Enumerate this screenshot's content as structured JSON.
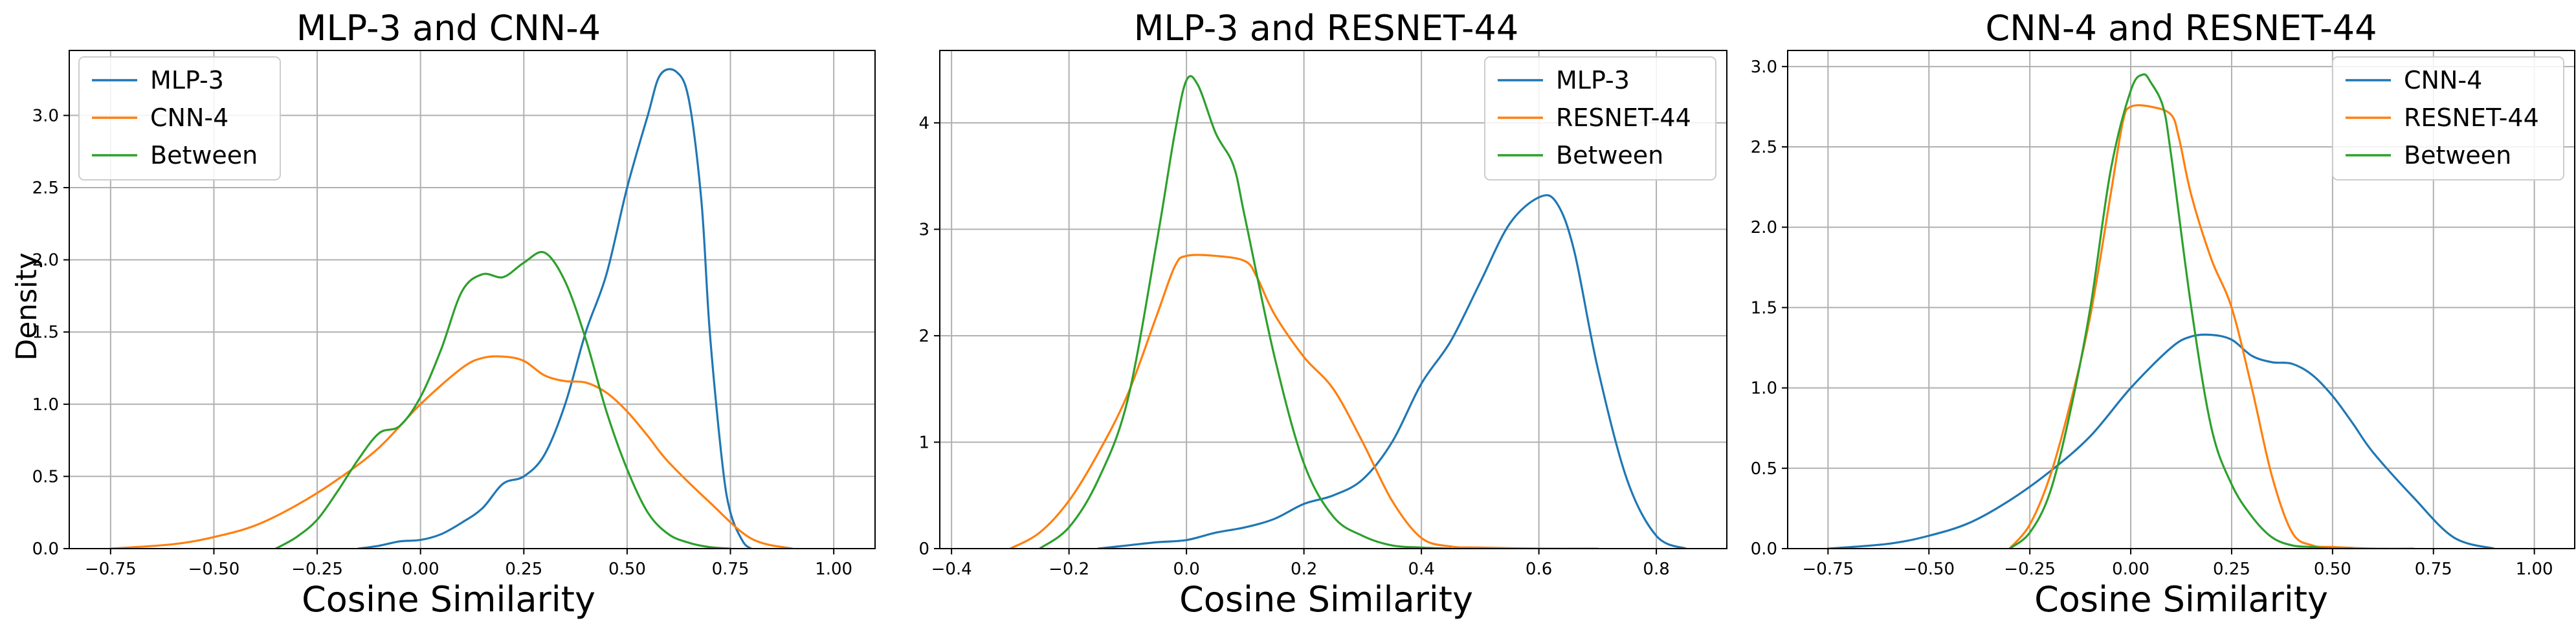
{
  "colors": {
    "blue": "#1f77b4",
    "orange": "#ff7f0e",
    "green": "#2ca02c",
    "grid": "#b0b0b0"
  },
  "chart_data": [
    {
      "type": "line",
      "title": "MLP-3 and CNN-4",
      "xlabel": "Cosine Similarity",
      "ylabel": "Density",
      "xlim": [
        -0.85,
        1.1
      ],
      "ylim": [
        0,
        3.45
      ],
      "xticks": [
        -0.75,
        -0.5,
        -0.25,
        0.0,
        0.25,
        0.5,
        0.75,
        1.0
      ],
      "xtick_labels": [
        "−0.75",
        "−0.50",
        "−0.25",
        "0.00",
        "0.25",
        "0.50",
        "0.75",
        "1.00"
      ],
      "yticks": [
        0,
        0.5,
        1.0,
        1.5,
        2.0,
        2.5,
        3.0
      ],
      "ytick_labels": [
        "0.0",
        "0.5",
        "1.0",
        "1.5",
        "2.0",
        "2.5",
        "3.0"
      ],
      "grid": true,
      "legend_position": "top-left",
      "series": [
        {
          "name": "MLP-3",
          "color": "#1f77b4",
          "x": [
            -0.15,
            -0.1,
            -0.05,
            0.0,
            0.05,
            0.1,
            0.15,
            0.2,
            0.25,
            0.3,
            0.35,
            0.4,
            0.45,
            0.5,
            0.55,
            0.58,
            0.62,
            0.65,
            0.68,
            0.7,
            0.73,
            0.75,
            0.78,
            0.8
          ],
          "y": [
            0.0,
            0.02,
            0.05,
            0.06,
            0.1,
            0.18,
            0.28,
            0.45,
            0.5,
            0.65,
            1.0,
            1.5,
            1.9,
            2.5,
            3.0,
            3.28,
            3.3,
            3.1,
            2.4,
            1.5,
            0.6,
            0.25,
            0.05,
            0.0
          ]
        },
        {
          "name": "CNN-4",
          "color": "#ff7f0e",
          "x": [
            -0.75,
            -0.6,
            -0.5,
            -0.4,
            -0.3,
            -0.2,
            -0.1,
            0.0,
            0.1,
            0.15,
            0.2,
            0.25,
            0.3,
            0.35,
            0.4,
            0.45,
            0.5,
            0.55,
            0.6,
            0.7,
            0.8,
            0.9
          ],
          "y": [
            0.0,
            0.03,
            0.08,
            0.16,
            0.3,
            0.48,
            0.7,
            1.0,
            1.25,
            1.32,
            1.33,
            1.3,
            1.2,
            1.16,
            1.15,
            1.08,
            0.95,
            0.78,
            0.6,
            0.32,
            0.07,
            0.0
          ]
        },
        {
          "name": "Between",
          "color": "#2ca02c",
          "x": [
            -0.35,
            -0.3,
            -0.25,
            -0.2,
            -0.15,
            -0.1,
            -0.05,
            0.0,
            0.05,
            0.1,
            0.15,
            0.2,
            0.25,
            0.3,
            0.35,
            0.4,
            0.45,
            0.5,
            0.55,
            0.6,
            0.65,
            0.7,
            0.75
          ],
          "y": [
            0.0,
            0.08,
            0.2,
            0.4,
            0.62,
            0.8,
            0.85,
            1.05,
            1.38,
            1.78,
            1.9,
            1.88,
            1.98,
            2.05,
            1.85,
            1.45,
            0.95,
            0.55,
            0.25,
            0.1,
            0.04,
            0.01,
            0.0
          ]
        }
      ]
    },
    {
      "type": "line",
      "title": "MLP-3 and RESNET-44",
      "xlabel": "Cosine Similarity",
      "ylabel": "",
      "xlim": [
        -0.42,
        0.92
      ],
      "ylim": [
        0,
        4.68
      ],
      "xticks": [
        -0.4,
        -0.2,
        0.0,
        0.2,
        0.4,
        0.6,
        0.8
      ],
      "xtick_labels": [
        "−0.4",
        "−0.2",
        "0.0",
        "0.2",
        "0.4",
        "0.6",
        "0.8"
      ],
      "yticks": [
        0,
        1,
        2,
        3,
        4
      ],
      "ytick_labels": [
        "0",
        "1",
        "2",
        "3",
        "4"
      ],
      "grid": true,
      "legend_position": "top-right",
      "series": [
        {
          "name": "MLP-3",
          "color": "#1f77b4",
          "x": [
            -0.15,
            -0.1,
            -0.05,
            0.0,
            0.05,
            0.1,
            0.15,
            0.2,
            0.25,
            0.3,
            0.35,
            0.4,
            0.45,
            0.5,
            0.55,
            0.6,
            0.63,
            0.66,
            0.7,
            0.75,
            0.8,
            0.85
          ],
          "y": [
            0.0,
            0.03,
            0.06,
            0.08,
            0.15,
            0.2,
            0.28,
            0.42,
            0.5,
            0.65,
            1.0,
            1.55,
            1.95,
            2.5,
            3.05,
            3.3,
            3.25,
            2.8,
            1.7,
            0.65,
            0.12,
            0.0
          ]
        },
        {
          "name": "RESNET-44",
          "color": "#ff7f0e",
          "x": [
            -0.3,
            -0.25,
            -0.2,
            -0.15,
            -0.1,
            -0.05,
            -0.02,
            0.0,
            0.05,
            0.1,
            0.12,
            0.15,
            0.2,
            0.25,
            0.3,
            0.35,
            0.4,
            0.45,
            0.5,
            0.6,
            0.7
          ],
          "y": [
            0.0,
            0.15,
            0.45,
            0.9,
            1.45,
            2.2,
            2.65,
            2.75,
            2.75,
            2.7,
            2.55,
            2.2,
            1.8,
            1.5,
            1.0,
            0.45,
            0.1,
            0.02,
            0.01,
            0.0,
            0.0
          ]
        },
        {
          "name": "Between",
          "color": "#2ca02c",
          "x": [
            -0.25,
            -0.2,
            -0.15,
            -0.1,
            -0.05,
            -0.02,
            0.0,
            0.02,
            0.05,
            0.08,
            0.1,
            0.15,
            0.2,
            0.25,
            0.3,
            0.35,
            0.4,
            0.45
          ],
          "y": [
            0.0,
            0.2,
            0.65,
            1.4,
            2.9,
            3.9,
            4.4,
            4.35,
            3.9,
            3.6,
            3.1,
            1.8,
            0.8,
            0.3,
            0.12,
            0.03,
            0.01,
            0.0
          ]
        }
      ]
    },
    {
      "type": "line",
      "title": "CNN-4 and RESNET-44",
      "xlabel": "Cosine Similarity",
      "ylabel": "",
      "xlim": [
        -0.85,
        1.1
      ],
      "ylim": [
        0,
        3.1
      ],
      "xticks": [
        -0.75,
        -0.5,
        -0.25,
        0.0,
        0.25,
        0.5,
        0.75,
        1.0
      ],
      "xtick_labels": [
        "−0.75",
        "−0.50",
        "−0.25",
        "0.00",
        "0.25",
        "0.50",
        "0.75",
        "1.00"
      ],
      "yticks": [
        0,
        0.5,
        1.0,
        1.5,
        2.0,
        2.5,
        3.0
      ],
      "ytick_labels": [
        "0.0",
        "0.5",
        "1.0",
        "1.5",
        "2.0",
        "2.5",
        "3.0"
      ],
      "grid": true,
      "legend_position": "top-right",
      "series": [
        {
          "name": "CNN-4",
          "color": "#1f77b4",
          "x": [
            -0.75,
            -0.6,
            -0.5,
            -0.4,
            -0.3,
            -0.2,
            -0.1,
            0.0,
            0.1,
            0.15,
            0.2,
            0.25,
            0.3,
            0.35,
            0.4,
            0.45,
            0.5,
            0.55,
            0.6,
            0.7,
            0.8,
            0.9
          ],
          "y": [
            0.0,
            0.03,
            0.08,
            0.16,
            0.3,
            0.48,
            0.7,
            1.0,
            1.25,
            1.32,
            1.33,
            1.3,
            1.2,
            1.16,
            1.15,
            1.08,
            0.95,
            0.78,
            0.6,
            0.32,
            0.07,
            0.0
          ]
        },
        {
          "name": "RESNET-44",
          "color": "#ff7f0e",
          "x": [
            -0.3,
            -0.25,
            -0.2,
            -0.15,
            -0.1,
            -0.05,
            -0.02,
            0.0,
            0.05,
            0.1,
            0.12,
            0.15,
            0.2,
            0.25,
            0.3,
            0.35,
            0.4,
            0.45,
            0.5,
            0.6,
            0.7
          ],
          "y": [
            0.0,
            0.15,
            0.45,
            0.9,
            1.45,
            2.2,
            2.65,
            2.75,
            2.75,
            2.7,
            2.55,
            2.2,
            1.8,
            1.5,
            1.0,
            0.45,
            0.1,
            0.02,
            0.01,
            0.0,
            0.0
          ]
        },
        {
          "name": "Between",
          "color": "#2ca02c",
          "x": [
            -0.3,
            -0.25,
            -0.2,
            -0.15,
            -0.1,
            -0.05,
            0.0,
            0.03,
            0.05,
            0.08,
            0.1,
            0.15,
            0.2,
            0.25,
            0.3,
            0.35,
            0.4,
            0.45,
            0.5,
            0.55
          ],
          "y": [
            0.0,
            0.1,
            0.35,
            0.85,
            1.5,
            2.35,
            2.85,
            2.95,
            2.9,
            2.75,
            2.45,
            1.5,
            0.75,
            0.4,
            0.2,
            0.07,
            0.02,
            0.01,
            0.0,
            0.0
          ]
        }
      ]
    }
  ]
}
